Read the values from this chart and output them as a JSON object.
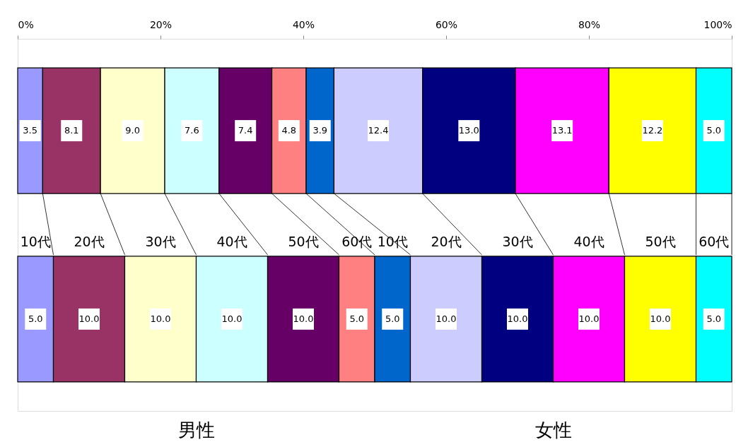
{
  "chart_data": {
    "type": "bar",
    "orientation": "horizontal",
    "stacked": true,
    "categories": [
      null,
      null
    ],
    "series": [
      {
        "name": "10代",
        "color": "#9999ff",
        "values": [
          3.5,
          5.0
        ]
      },
      {
        "name": "20代",
        "color": "#993366",
        "values": [
          8.1,
          10.0
        ]
      },
      {
        "name": "30代",
        "color": "#ffffcc",
        "values": [
          9.0,
          10.0
        ]
      },
      {
        "name": "40代",
        "color": "#ccffff",
        "values": [
          7.6,
          10.0
        ]
      },
      {
        "name": "50代",
        "color": "#660066",
        "values": [
          7.4,
          10.0
        ]
      },
      {
        "name": "60代",
        "color": "#ff8080",
        "values": [
          4.8,
          5.0
        ]
      },
      {
        "name": "10代",
        "color": "#0066cc",
        "values": [
          3.9,
          5.0
        ]
      },
      {
        "name": "20代",
        "color": "#ccccff",
        "values": [
          12.4,
          10.0
        ]
      },
      {
        "name": "30代",
        "color": "#000080",
        "values": [
          13.0,
          10.0
        ]
      },
      {
        "name": "40代",
        "color": "#ff00ff",
        "values": [
          13.1,
          10.0
        ]
      },
      {
        "name": "50代",
        "color": "#ffff00",
        "values": [
          12.2,
          10.0
        ]
      },
      {
        "name": "60代",
        "color": "#00ffff",
        "values": [
          5.0,
          5.0
        ]
      }
    ],
    "xlim": [
      0,
      100
    ],
    "xticks": [
      {
        "value": 0,
        "label": "0%"
      },
      {
        "value": 20,
        "label": "20%"
      },
      {
        "value": 40,
        "label": "40%"
      },
      {
        "value": 60,
        "label": "60%"
      },
      {
        "value": 80,
        "label": "80%"
      },
      {
        "value": 100,
        "label": "100%"
      }
    ],
    "value_labels": [
      [
        "3.5",
        "5.0"
      ],
      [
        "8.1",
        "10.0"
      ],
      [
        "9.0",
        "10.0"
      ],
      [
        "7.6",
        "10.0"
      ],
      [
        "7.4",
        "10.0"
      ],
      [
        "4.8",
        "5.0"
      ],
      [
        "3.9",
        "5.0"
      ],
      [
        "12.4",
        "10.0"
      ],
      [
        "13.0",
        "10.0"
      ],
      [
        "13.1",
        "10.0"
      ],
      [
        "12.2",
        "10.0"
      ],
      [
        "5.0",
        "5.0"
      ]
    ],
    "grid": false,
    "tick_labels": "x",
    "annotations": [
      "男性",
      "女性"
    ]
  }
}
